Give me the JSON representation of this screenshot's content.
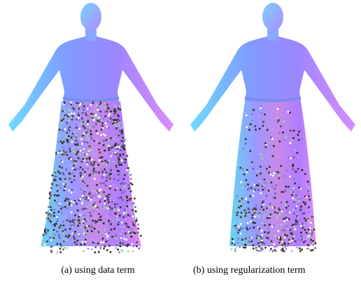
{
  "figures": [
    {
      "caption": "(a) using data term"
    },
    {
      "caption": "(b) using regularization term"
    }
  ]
}
